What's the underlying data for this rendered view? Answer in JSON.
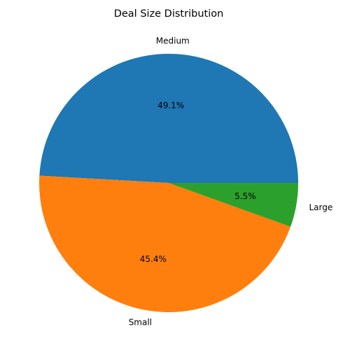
{
  "chart_data": {
    "type": "pie",
    "title": "Deal Size Distribution",
    "slices": [
      {
        "label": "Medium",
        "value": 49.1,
        "pct_label": "49.1%",
        "color": "#1f77b4"
      },
      {
        "label": "Small",
        "value": 45.4,
        "pct_label": "45.4%",
        "color": "#ff7f0e"
      },
      {
        "label": "Large",
        "value": 5.5,
        "pct_label": "5.5%",
        "color": "#2ca02c"
      }
    ],
    "start_angle_deg": 0,
    "direction": "counterclockwise",
    "legend": "none"
  }
}
